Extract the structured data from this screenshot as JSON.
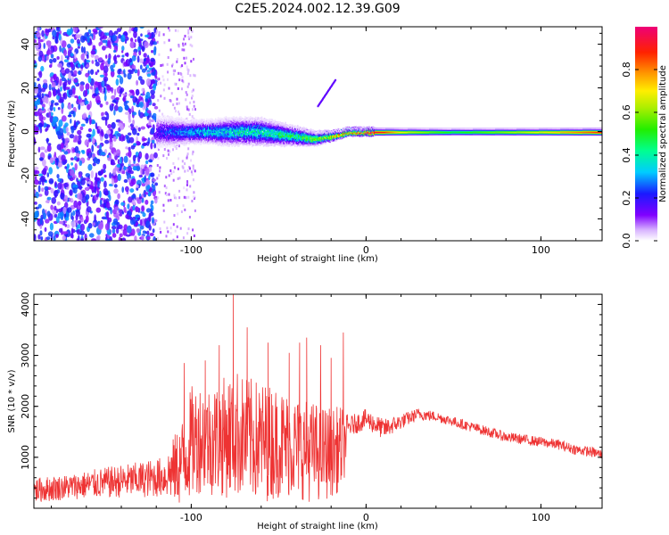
{
  "title": "C2E5.2024.002.12.39.G09",
  "chart_data": [
    {
      "type": "heatmap",
      "xlabel": "Height of straight line (km)",
      "ylabel": "Frequency (Hz)",
      "xlim": [
        -190,
        135
      ],
      "ylim": [
        -50,
        48
      ],
      "xticks": [
        -100,
        0,
        100
      ],
      "yticks": [
        -40,
        -20,
        0,
        20,
        40
      ],
      "colorbar": {
        "label": "Normalized spectral amplitude",
        "range": [
          0.0,
          1.0
        ],
        "ticks": [
          0.0,
          0.2,
          0.4,
          0.6,
          0.8
        ],
        "tick_labels": [
          "0.0",
          "0.2",
          "0.4",
          "0.6",
          "0.8"
        ]
      },
      "signal_band": {
        "x": [
          -120,
          -110,
          -100,
          -90,
          -80,
          -70,
          -60,
          -50,
          -40,
          -30,
          -20,
          -10,
          0,
          10,
          20,
          50,
          100,
          135
        ],
        "center_freq": [
          0,
          0,
          0,
          0,
          0,
          0,
          0,
          -1,
          -2,
          -3,
          -2,
          0,
          0,
          0,
          0,
          0,
          0,
          0
        ],
        "half_width": [
          7,
          6,
          5,
          5,
          6,
          6,
          6,
          5,
          4,
          3,
          2,
          1.5,
          1.5,
          1.5,
          1.5,
          1.5,
          1.5,
          1.5
        ],
        "peak_amplitude": [
          0.2,
          0.3,
          0.35,
          0.4,
          0.4,
          0.45,
          0.45,
          0.5,
          0.55,
          0.65,
          0.8,
          0.9,
          1.0,
          0.9,
          0.7,
          0.5,
          0.7,
          0.9
        ]
      },
      "noise_region": {
        "x": [
          -190,
          -120
        ],
        "amplitude": [
          0.05,
          0.3
        ]
      },
      "sparse_noise_region": {
        "x": [
          -120,
          -98
        ],
        "amplitude": [
          0.02,
          0.1
        ]
      },
      "streak": {
        "x": [
          -28,
          -18
        ],
        "freq": [
          12,
          24
        ],
        "amplitude": 0.15
      }
    },
    {
      "type": "line",
      "xlabel": "Height of straight line (km)",
      "ylabel": "SNR (10 * v/v)",
      "xlim": [
        -190,
        135
      ],
      "ylim": [
        0,
        4200
      ],
      "xticks": [
        -100,
        0,
        100
      ],
      "yticks": [
        1000,
        2000,
        3000,
        4000
      ],
      "color": "#ee3333",
      "series": [
        {
          "x": [
            -190,
            -170,
            -150,
            -130,
            -115,
            -105,
            -100,
            -95,
            -90,
            -80,
            -75,
            -70,
            -60,
            -50,
            -40,
            -30,
            -20,
            -13,
            -10,
            0,
            10,
            20,
            30,
            40,
            50,
            60,
            70,
            80,
            90,
            100,
            110,
            120,
            130,
            135
          ],
          "values": [
            350,
            420,
            500,
            560,
            620,
            900,
            1300,
            1400,
            1350,
            1400,
            1500,
            1400,
            1300,
            1300,
            1200,
            1100,
            1100,
            1200,
            1600,
            1750,
            1550,
            1700,
            1850,
            1800,
            1700,
            1600,
            1500,
            1400,
            1350,
            1300,
            1250,
            1150,
            1100,
            1050
          ],
          "noise_amplitude": [
            250,
            250,
            300,
            350,
            400,
            900,
            1100,
            1100,
            1100,
            1200,
            1300,
            1200,
            1200,
            1100,
            1000,
            1000,
            900,
            800,
            200,
            200,
            200,
            150,
            120,
            100,
            100,
            100,
            100,
            100,
            100,
            100,
            100,
            100,
            100,
            100
          ],
          "peaks": [
            {
              "x": -104,
              "y": 2850
            },
            {
              "x": -92,
              "y": 2900
            },
            {
              "x": -84,
              "y": 3200
            },
            {
              "x": -76,
              "y": 4200
            },
            {
              "x": -68,
              "y": 3550
            },
            {
              "x": -56,
              "y": 3250
            },
            {
              "x": -44,
              "y": 3050
            },
            {
              "x": -38,
              "y": 3250
            },
            {
              "x": -34,
              "y": 3350
            },
            {
              "x": -26,
              "y": 3200
            },
            {
              "x": -20,
              "y": 2950
            },
            {
              "x": -13,
              "y": 3450
            }
          ]
        }
      ]
    }
  ]
}
